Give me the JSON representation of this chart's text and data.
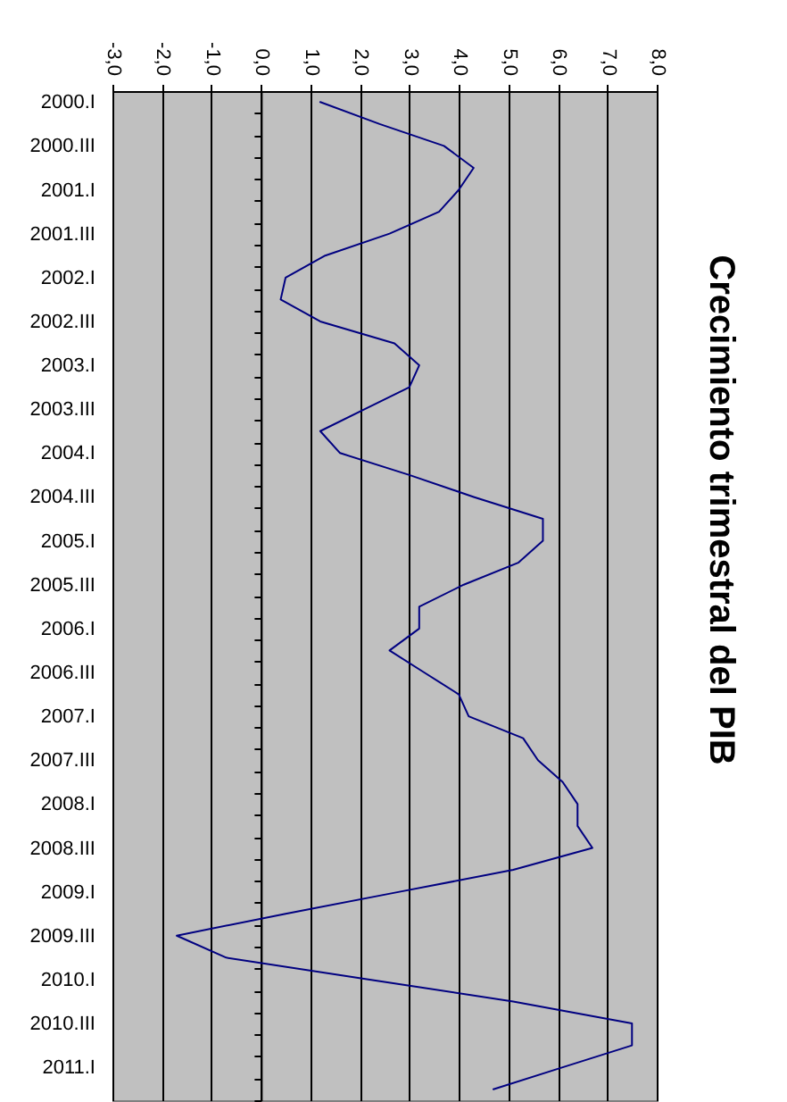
{
  "chart_data": {
    "type": "line",
    "title": "Crecimiento trimestral del PIB",
    "orientation": "horizontal",
    "categories": [
      "2000.I",
      null,
      "2000.III",
      null,
      "2001.I",
      null,
      "2001.III",
      null,
      "2002.I",
      null,
      "2002.III",
      null,
      "2003.I",
      null,
      "2003.III",
      null,
      "2004.I",
      null,
      "2004.III",
      null,
      "2005.I",
      null,
      "2005.III",
      null,
      "2006.I",
      null,
      "2006.III",
      null,
      "2007.I",
      null,
      "2007.III",
      null,
      "2008.I",
      null,
      "2008.III",
      null,
      "2009.I",
      null,
      "2009.III",
      null,
      "2010.I",
      null,
      "2010.III",
      null,
      "2011.I",
      null
    ],
    "series": [
      {
        "color": "#000080",
        "values": [
          1.2,
          2.4,
          3.7,
          4.3,
          4.0,
          3.6,
          2.6,
          1.3,
          0.5,
          0.4,
          1.2,
          2.7,
          3.2,
          3.0,
          2.1,
          1.2,
          1.6,
          3.0,
          4.3,
          5.7,
          5.7,
          5.2,
          4.1,
          3.2,
          3.2,
          2.6,
          3.3,
          4.0,
          4.2,
          5.3,
          5.6,
          6.1,
          6.4,
          6.4,
          6.7,
          5.1,
          2.8,
          0.5,
          -1.7,
          -0.7,
          2.2,
          5.1,
          7.5,
          7.5,
          6.1,
          4.7
        ]
      }
    ],
    "xlim": [
      -3,
      8
    ],
    "xticks": [
      {
        "value": -3,
        "label": "-3,0"
      },
      {
        "value": -2,
        "label": "-2,0"
      },
      {
        "value": -1,
        "label": "-1,0"
      },
      {
        "value": 0,
        "label": "0,0"
      },
      {
        "value": 1,
        "label": "1,0"
      },
      {
        "value": 2,
        "label": "2,0"
      },
      {
        "value": 3,
        "label": "3,0"
      },
      {
        "value": 4,
        "label": "4,0"
      },
      {
        "value": 5,
        "label": "5,0"
      },
      {
        "value": 6,
        "label": "6,0"
      },
      {
        "value": 7,
        "label": "7,0"
      },
      {
        "value": 8,
        "label": "8,0"
      }
    ],
    "grid": "x",
    "line_style": "solid"
  }
}
